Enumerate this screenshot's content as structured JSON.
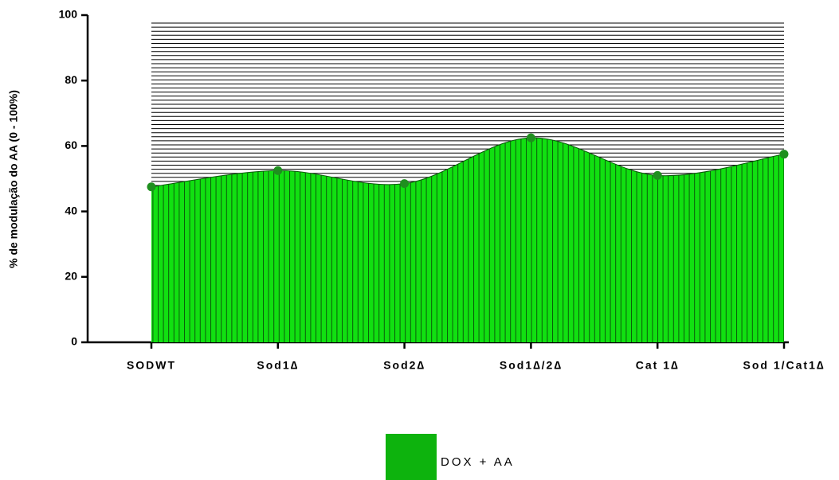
{
  "chart_data": {
    "type": "area",
    "y_label": "% de modulação do AA (0 - 100%)",
    "categories": [
      "SODWT",
      "Sod1∆",
      "Sod2∆",
      "Sod1∆/2∆",
      "Cat 1∆",
      "Sod 1/Cat1∆"
    ],
    "series": [
      {
        "name": "DOX + AA",
        "color": "#11e011",
        "marker_color": "#1f8f1f",
        "legend_color": "#0db30d",
        "values": [
          47.5,
          52.5,
          48.5,
          62.5,
          51,
          57.5
        ]
      }
    ],
    "ylim": [
      0,
      100
    ],
    "yticks": [
      0,
      20,
      40,
      60,
      80,
      100
    ],
    "grid": false,
    "legend": "bottom"
  }
}
